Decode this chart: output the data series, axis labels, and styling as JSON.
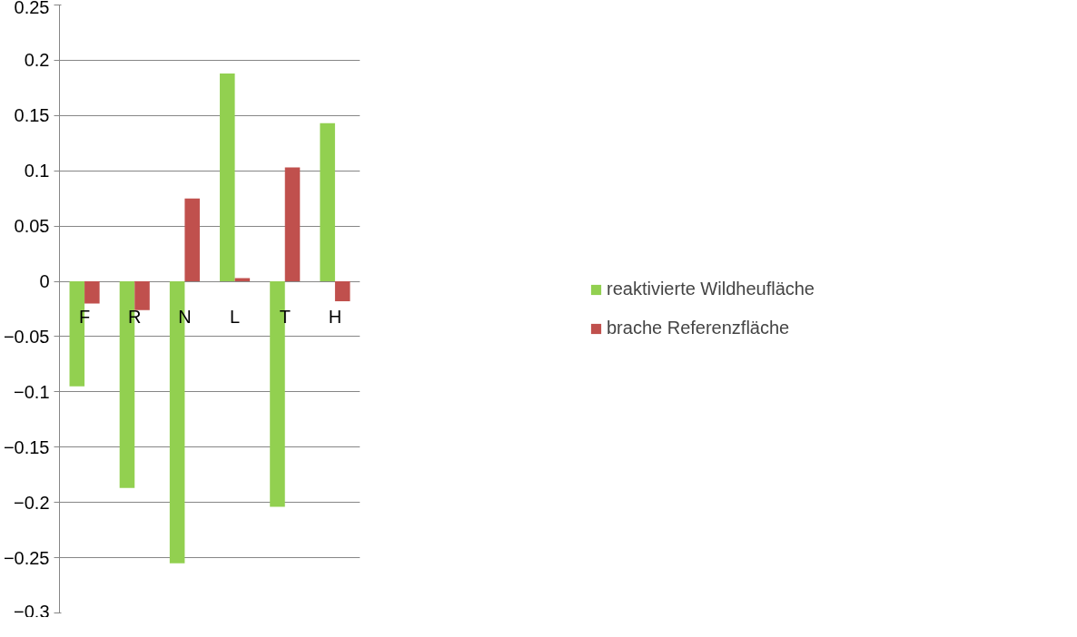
{
  "chart_data": {
    "type": "bar",
    "categories": [
      "F",
      "R",
      "N",
      "L",
      "T",
      "H"
    ],
    "series": [
      {
        "name": "reaktivierte Wildheufläche",
        "color": "#92d050",
        "values": [
          -0.095,
          -0.187,
          -0.255,
          0.188,
          -0.204,
          0.143
        ]
      },
      {
        "name": "brache Referenzfläche",
        "color": "#c0504d",
        "values": [
          -0.02,
          -0.026,
          0.075,
          0.003,
          0.103,
          -0.018
        ]
      }
    ],
    "ylim": [
      -0.3,
      0.25
    ],
    "yticks": [
      -0.3,
      -0.25,
      -0.2,
      -0.15,
      -0.1,
      -0.05,
      0,
      0.05,
      0.1,
      0.15,
      0.2,
      0.25
    ],
    "grid": "y",
    "legend": "right"
  }
}
